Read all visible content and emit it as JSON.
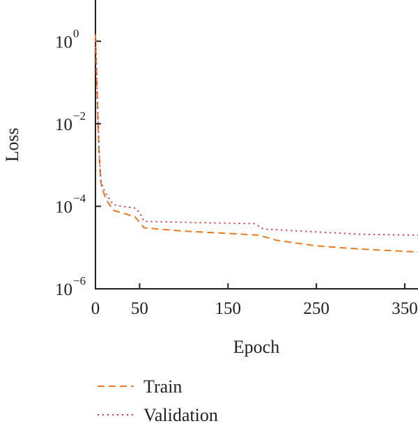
{
  "chart_data": {
    "type": "line",
    "title": "",
    "xlabel": "Epoch",
    "ylabel": "Loss",
    "xlim": [
      0,
      365
    ],
    "ylim": [
      1e-06,
      10
    ],
    "yscale": "log",
    "grid": false,
    "legend_position": "bottom-left",
    "x_ticks": [
      {
        "value": 0,
        "label": "0"
      },
      {
        "value": 50,
        "label": "50"
      },
      {
        "value": 150,
        "label": "150"
      },
      {
        "value": 250,
        "label": "250"
      },
      {
        "value": 350,
        "label": "350"
      }
    ],
    "y_ticks": [
      {
        "value": 1,
        "base": "10",
        "exp": "0"
      },
      {
        "value": 0.01,
        "base": "10",
        "exp": "−2"
      },
      {
        "value": 0.0001,
        "base": "10",
        "exp": "−4"
      },
      {
        "value": 1e-06,
        "base": "10",
        "exp": "−6"
      }
    ],
    "series": [
      {
        "name": "Train",
        "color": "#f07a1a",
        "dash": "dashed",
        "x": [
          0,
          2,
          4,
          6,
          8,
          12,
          20,
          30,
          45,
          55,
          100,
          150,
          185,
          205,
          250,
          300,
          365
        ],
        "y": [
          1.4,
          0.05,
          0.002,
          0.0004,
          0.00025,
          0.00015,
          8e-05,
          7e-05,
          5.5e-05,
          3e-05,
          2.5e-05,
          2.2e-05,
          2e-05,
          1.5e-05,
          1.1e-05,
          9.2e-06,
          7.8e-06
        ]
      },
      {
        "name": "Validation",
        "color": "#ee2e31",
        "dash": "dotted",
        "x": [
          0,
          2,
          4,
          6,
          8,
          12,
          20,
          30,
          45,
          50,
          55,
          100,
          150,
          180,
          190,
          250,
          300,
          365
        ],
        "y": [
          1.5,
          0.06,
          0.0025,
          0.00045,
          0.0003,
          0.0002,
          0.00011,
          0.0001,
          9e-05,
          7e-05,
          4.3e-05,
          4.1e-05,
          3.9e-05,
          3.8e-05,
          2.8e-05,
          2.4e-05,
          2.1e-05,
          2e-05
        ]
      }
    ]
  }
}
